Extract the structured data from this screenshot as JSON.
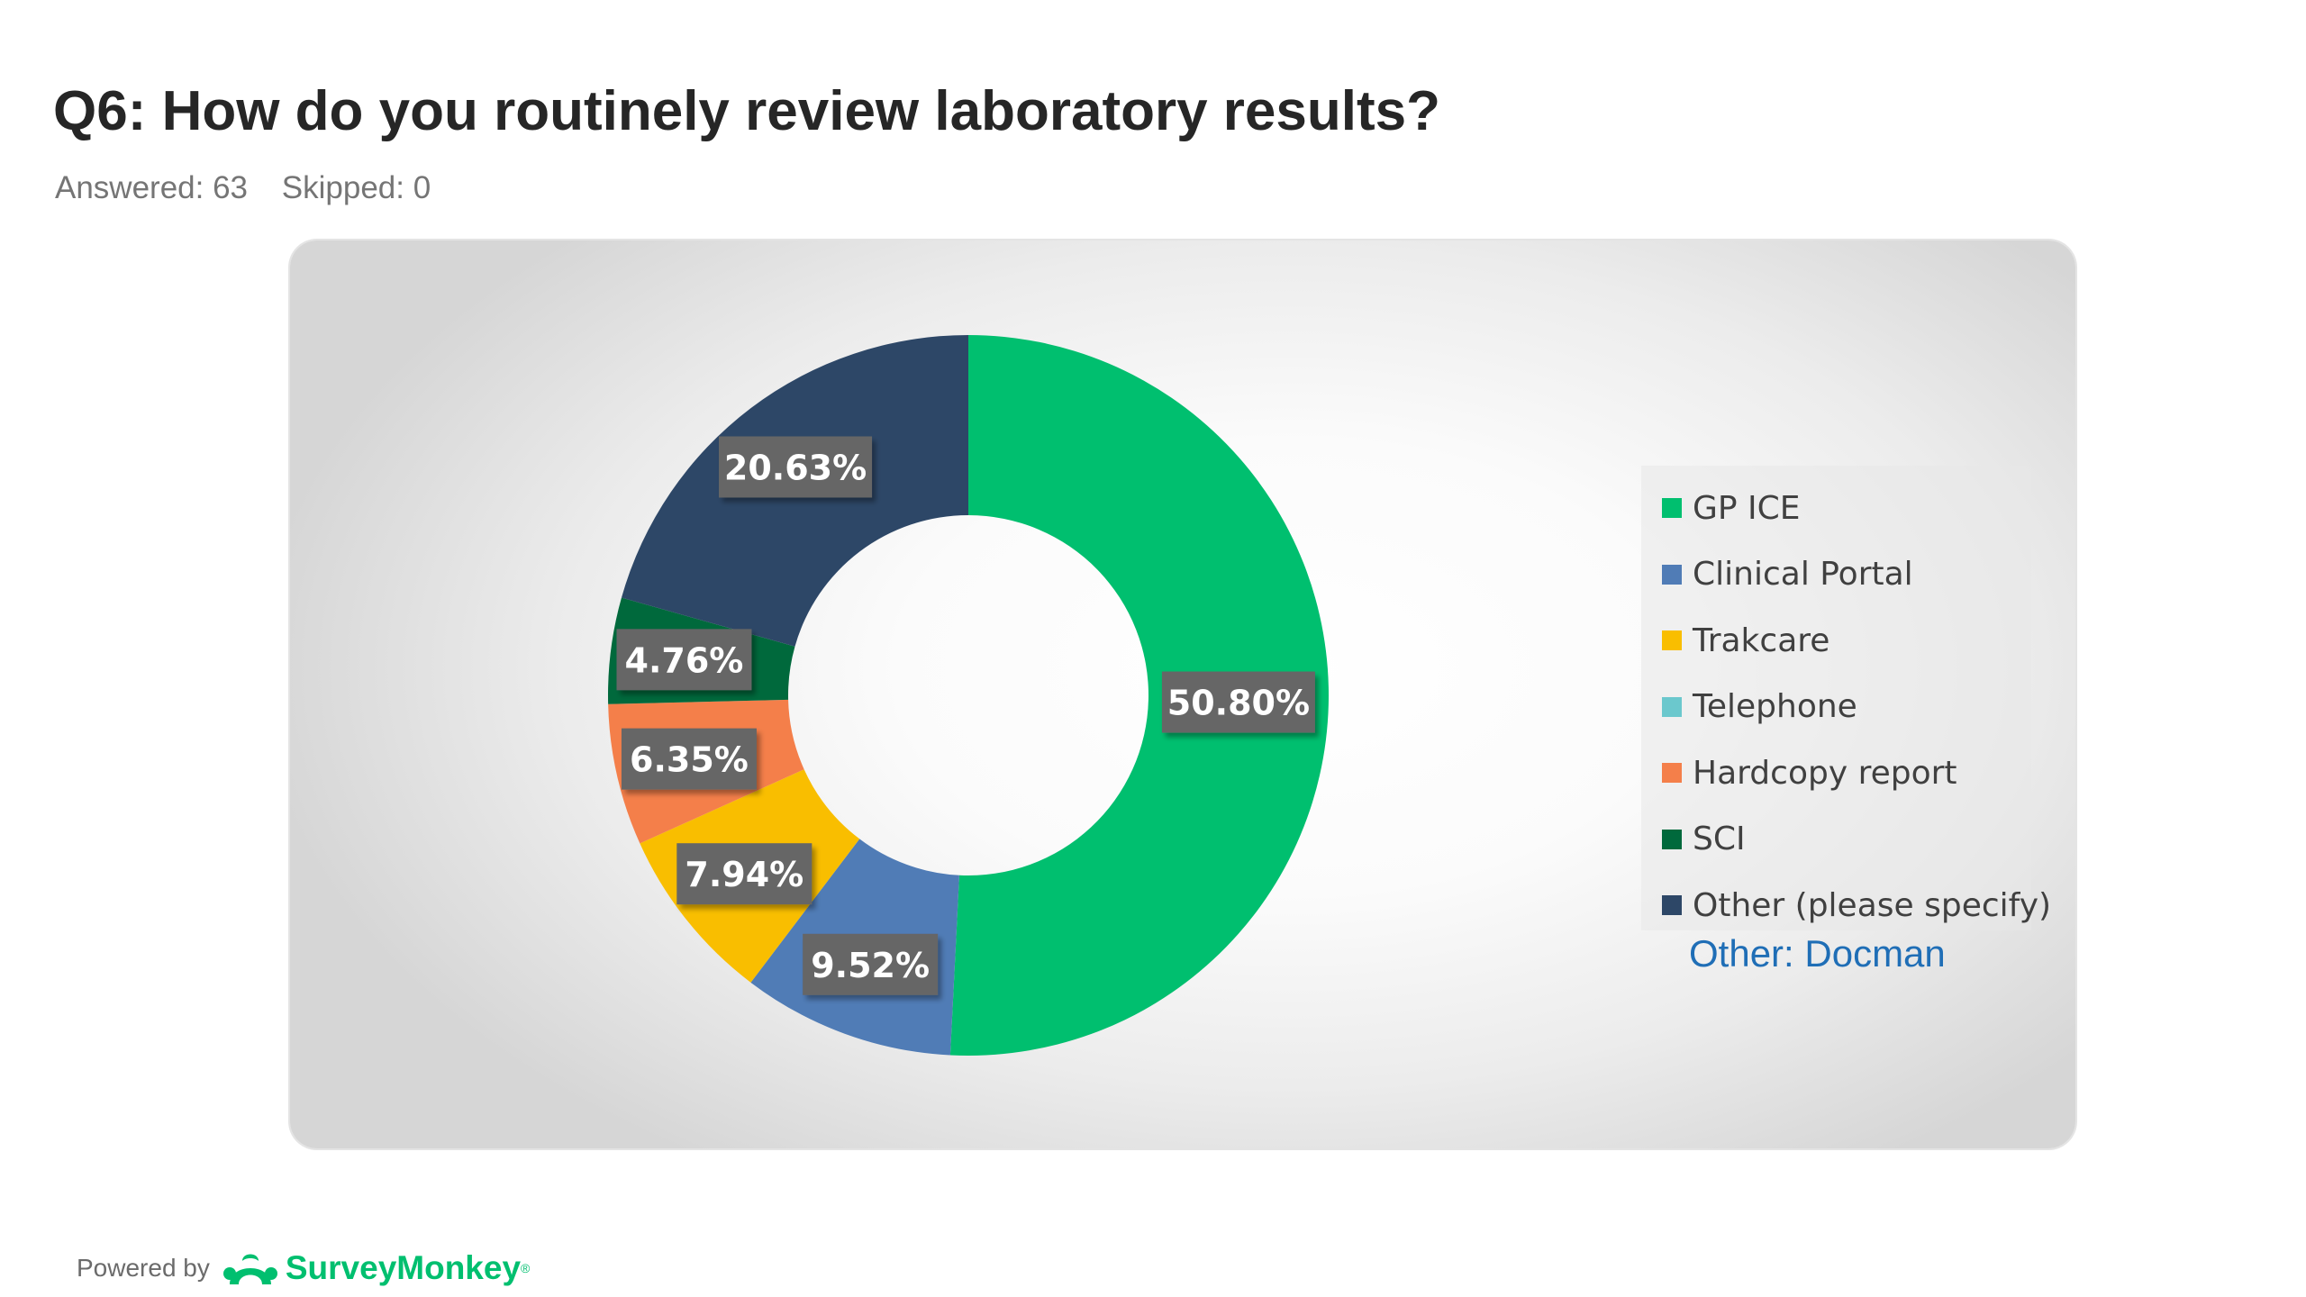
{
  "header": {
    "title": "Q6: How do you routinely review laboratory results?",
    "answered": "Answered: 63",
    "skipped": "Skipped: 0"
  },
  "chart_data": {
    "type": "pie",
    "style": "donut",
    "categories": [
      "GP ICE",
      "Clinical Portal",
      "Trakcare",
      "Telephone",
      "Hardcopy report",
      "SCI",
      "Other (please specify)"
    ],
    "values": [
      50.8,
      9.52,
      7.94,
      0,
      6.35,
      4.76,
      20.63
    ],
    "labels": [
      "50.80%",
      "9.52%",
      "7.94%",
      "",
      "6.35%",
      "4.76%",
      "20.63%"
    ],
    "colors": [
      "#00bf6f",
      "#507cb6",
      "#f9be00",
      "#6bc8cd",
      "#f47f4a",
      "#00693c",
      "#2d4767"
    ],
    "legend_position": "right",
    "annotation": "Other: Docman"
  },
  "footer": {
    "powered_by": "Powered by",
    "brand": "SurveyMonkey",
    "trademark": "®"
  }
}
